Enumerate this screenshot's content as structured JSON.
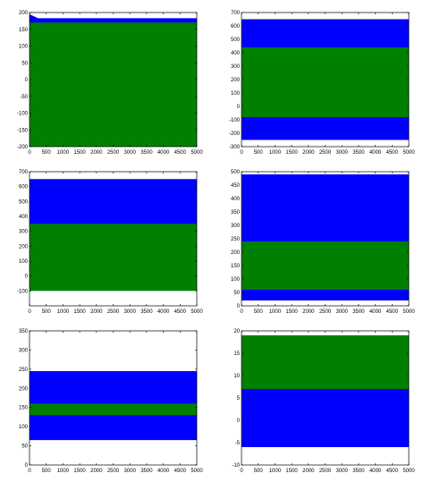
{
  "colors": {
    "series_a": "#0000ff",
    "series_b": "#008000",
    "axis": "#000000",
    "background": "#ffffff"
  },
  "chart_data": [
    {
      "type": "area",
      "xlim": [
        0,
        5000
      ],
      "ylim": [
        -200,
        200
      ],
      "x_ticks": [
        "0",
        "500",
        "1000",
        "1500",
        "2000",
        "2500",
        "3000",
        "3500",
        "4000",
        "4500",
        "5000"
      ],
      "y_ticks": [
        "-200",
        "-150",
        "-100",
        "-50",
        "0",
        "50",
        "100",
        "150",
        "200"
      ],
      "series": [
        {
          "color": "#0000ff",
          "values": [
            [
              0,
              -215,
              195
            ],
            [
              250,
              -215,
              183
            ],
            [
              5000,
              -215,
              183
            ]
          ]
        },
        {
          "color": "#008000",
          "values": [
            [
              0,
              -213,
              170
            ],
            [
              5000,
              -213,
              170
            ]
          ]
        }
      ]
    },
    {
      "type": "area",
      "xlim": [
        0,
        5000
      ],
      "ylim": [
        -300,
        700
      ],
      "x_ticks": [
        "0",
        "500",
        "1000",
        "1500",
        "2000",
        "2500",
        "3000",
        "3500",
        "4000",
        "4500",
        "5000"
      ],
      "y_ticks": [
        "-300",
        "-200",
        "-100",
        "0",
        "100",
        "200",
        "300",
        "400",
        "500",
        "600",
        "700"
      ],
      "series": [
        {
          "color": "#0000ff",
          "values": [
            [
              0,
              -250,
              650
            ],
            [
              5000,
              -250,
              650
            ]
          ]
        },
        {
          "color": "#008000",
          "values": [
            [
              0,
              -80,
              440
            ],
            [
              5000,
              -80,
              440
            ]
          ]
        }
      ]
    },
    {
      "type": "area",
      "xlim": [
        0,
        5000
      ],
      "ylim": [
        -200,
        700
      ],
      "x_ticks": [
        "0",
        "500",
        "1000",
        "1500",
        "2000",
        "2500",
        "3000",
        "3500",
        "4000",
        "4500",
        "5000"
      ],
      "y_ticks": [
        "-100",
        "0",
        "100",
        "200",
        "300",
        "400",
        "500",
        "600",
        "700"
      ],
      "series": [
        {
          "color": "#0000ff",
          "values": [
            [
              0,
              340,
              650
            ],
            [
              5000,
              340,
              650
            ]
          ]
        },
        {
          "color": "#008000",
          "values": [
            [
              0,
              -100,
              350
            ],
            [
              5000,
              -100,
              350
            ]
          ]
        }
      ]
    },
    {
      "type": "area",
      "xlim": [
        0,
        5000
      ],
      "ylim": [
        0,
        500
      ],
      "x_ticks": [
        "0",
        "500",
        "1000",
        "1500",
        "2000",
        "2500",
        "3000",
        "3500",
        "4000",
        "4500",
        "5000"
      ],
      "y_ticks": [
        "0",
        "50",
        "100",
        "150",
        "200",
        "250",
        "300",
        "350",
        "400",
        "450",
        "500"
      ],
      "series": [
        {
          "color": "#0000ff",
          "values": [
            [
              0,
              20,
              490
            ],
            [
              5000,
              20,
              490
            ]
          ]
        },
        {
          "color": "#008000",
          "values": [
            [
              0,
              60,
              240
            ],
            [
              5000,
              60,
              240
            ]
          ]
        }
      ]
    },
    {
      "type": "area",
      "xlim": [
        0,
        5000
      ],
      "ylim": [
        0,
        350
      ],
      "x_ticks": [
        "0",
        "500",
        "1000",
        "1500",
        "2000",
        "2500",
        "3000",
        "3500",
        "4000",
        "4500",
        "5000"
      ],
      "y_ticks": [
        "0",
        "50",
        "100",
        "150",
        "200",
        "250",
        "300",
        "350"
      ],
      "series": [
        {
          "color": "#0000ff",
          "values": [
            [
              0,
              65,
              245
            ],
            [
              5000,
              65,
              245
            ]
          ]
        },
        {
          "color": "#008000",
          "values": [
            [
              0,
              130,
              160
            ],
            [
              5000,
              130,
              160
            ]
          ]
        }
      ]
    },
    {
      "type": "area",
      "xlim": [
        0,
        5000
      ],
      "ylim": [
        -10,
        20
      ],
      "x_ticks": [
        "0",
        "500",
        "1000",
        "1500",
        "2000",
        "2500",
        "3000",
        "3500",
        "4000",
        "4500",
        "5000"
      ],
      "y_ticks": [
        "-10",
        "-5",
        "0",
        "5",
        "10",
        "15",
        "20"
      ],
      "series": [
        {
          "color": "#008000",
          "values": [
            [
              0,
              5,
              19
            ],
            [
              5000,
              5,
              19
            ]
          ]
        },
        {
          "color": "#0000ff",
          "values": [
            [
              0,
              -6,
              7
            ],
            [
              5000,
              -6,
              7
            ]
          ]
        }
      ]
    }
  ]
}
